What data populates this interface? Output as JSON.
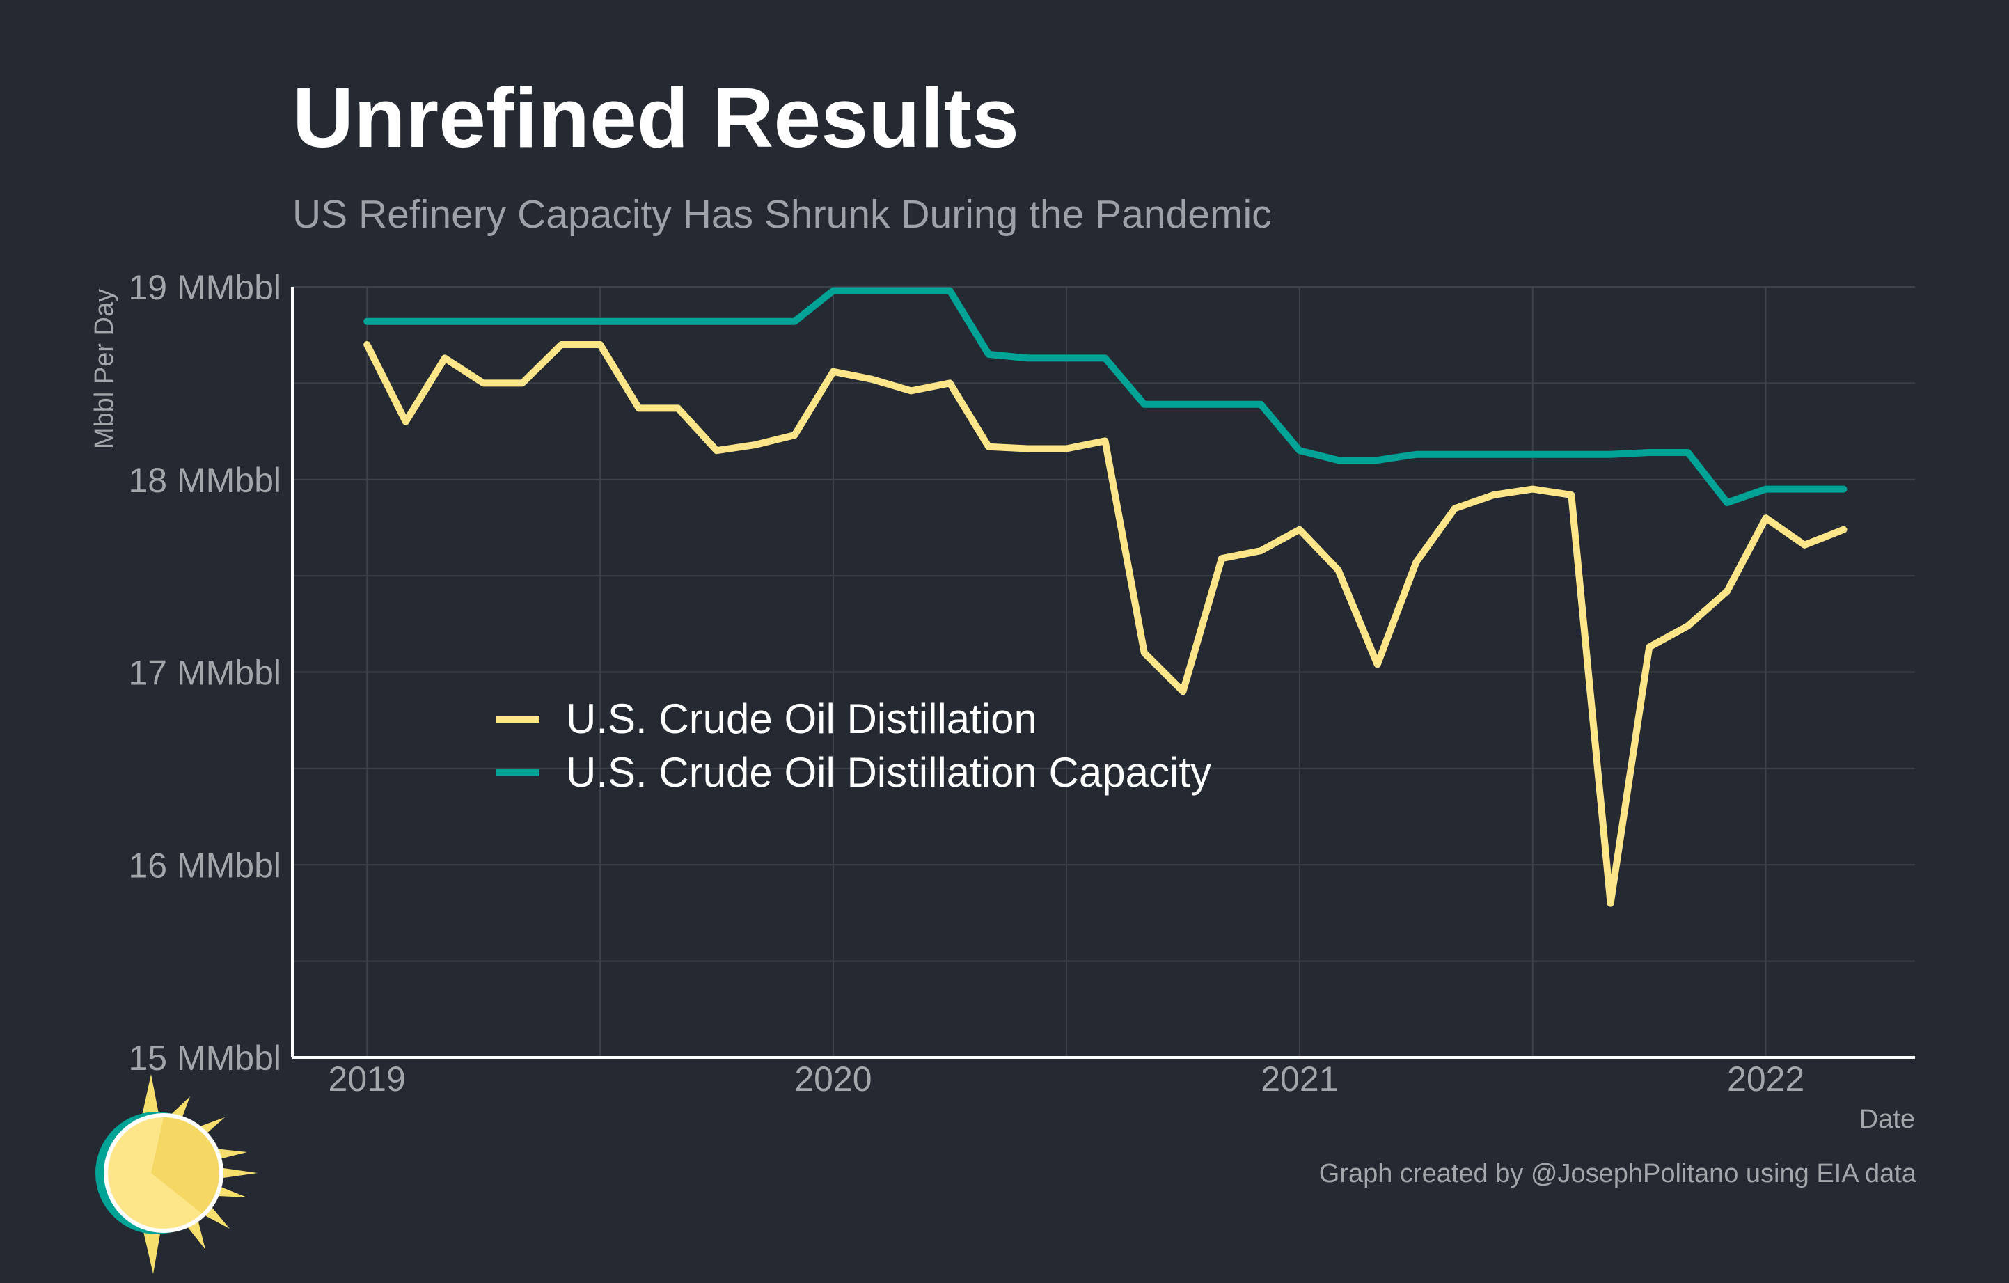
{
  "title": "Unrefined Results",
  "subtitle": "US Refinery Capacity Has Shrunk During the Pandemic",
  "caption": "Graph created by @JosephPolitano using EIA data",
  "colors": {
    "background": "#252931",
    "distillation": "#fde68a",
    "capacity": "#00a396",
    "grid": "#3c4048",
    "axis": "#ffffff"
  },
  "chart_data": {
    "type": "line",
    "xlabel": "Date",
    "ylabel": "Mbbl Per Day",
    "xlim": [
      2018.84,
      2022.32
    ],
    "ylim": [
      15,
      19
    ],
    "x_ticks": [
      2019,
      2020,
      2021,
      2022
    ],
    "x_tick_labels": [
      "2019",
      "2020",
      "2021",
      "2022"
    ],
    "y_ticks": [
      15,
      16,
      17,
      18,
      19
    ],
    "y_tick_labels": [
      "15 MMbbl",
      "16 MMbbl",
      "17 MMbbl",
      "18 MMbbl",
      "19 MMbbl"
    ],
    "legend_position": "center-left",
    "x": [
      2019.0,
      2019.083,
      2019.167,
      2019.25,
      2019.333,
      2019.417,
      2019.5,
      2019.583,
      2019.667,
      2019.75,
      2019.833,
      2019.917,
      2020.0,
      2020.083,
      2020.167,
      2020.25,
      2020.333,
      2020.417,
      2020.5,
      2020.583,
      2020.667,
      2020.75,
      2020.833,
      2020.917,
      2021.0,
      2021.083,
      2021.167,
      2021.25,
      2021.333,
      2021.417,
      2021.5,
      2021.583,
      2021.667,
      2021.75,
      2021.833,
      2021.917,
      2022.0,
      2022.083,
      2022.167
    ],
    "series": [
      {
        "name": "U.S. Crude Oil Distillation",
        "color": "#fde68a",
        "values": [
          18.7,
          18.3,
          18.63,
          18.5,
          18.5,
          18.7,
          18.7,
          18.37,
          18.37,
          18.15,
          18.18,
          18.23,
          18.56,
          18.52,
          18.46,
          18.5,
          18.17,
          18.16,
          18.16,
          18.2,
          17.1,
          16.9,
          17.59,
          17.63,
          17.74,
          17.53,
          17.04,
          17.57,
          17.85,
          17.92,
          17.95,
          17.92,
          15.8,
          17.13,
          17.24,
          17.42,
          17.8,
          17.66,
          17.74
        ]
      },
      {
        "name": "U.S. Crude Oil Distillation Capacity",
        "color": "#00a396",
        "values": [
          18.82,
          18.82,
          18.82,
          18.82,
          18.82,
          18.82,
          18.82,
          18.82,
          18.82,
          18.82,
          18.82,
          18.82,
          18.98,
          18.98,
          18.98,
          18.98,
          18.65,
          18.63,
          18.63,
          18.63,
          18.39,
          18.39,
          18.39,
          18.39,
          18.15,
          18.1,
          18.1,
          18.13,
          18.13,
          18.13,
          18.13,
          18.13,
          18.13,
          18.14,
          18.14,
          17.88,
          17.95,
          17.95,
          17.95
        ]
      }
    ]
  }
}
